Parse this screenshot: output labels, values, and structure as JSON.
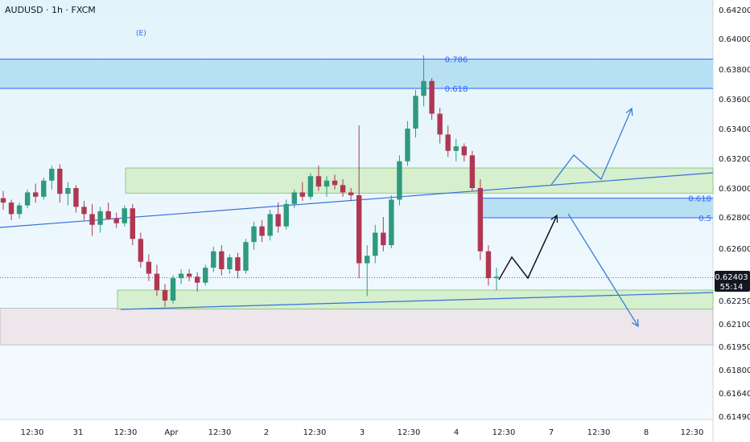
{
  "title": "AUDUSD · 1h · FXCM",
  "event_marker": "(E)",
  "colors": {
    "bull": "#2e9a7e",
    "bear": "#b03752",
    "background_top": "#e3f3fb",
    "background_bottom": "#f4fbff",
    "fib_line": "#2962ff",
    "fib_zone": "#b8e0f3",
    "green_zone": "#d5efcf",
    "gray_zone": "#ede6ea",
    "trendline": "#3b6fd8",
    "projection_blue": "#3b7dd8",
    "projection_black": "#131722",
    "price_tag": "#131722"
  },
  "current_price": {
    "price": "0.62403",
    "countdown": "55:14"
  },
  "chart_data": {
    "type": "candlestick",
    "symbol": "AUDUSD",
    "timeframe": "1h",
    "source": "FXCM",
    "y_ticks": [
      "0.64200",
      "0.64000",
      "0.63800",
      "0.63600",
      "0.63400",
      "0.63200",
      "0.63000",
      "0.62800",
      "0.62600",
      "0.62250",
      "0.62100",
      "0.61950",
      "0.61800",
      "0.61640",
      "0.61490"
    ],
    "x_ticks": [
      "12:30",
      "31",
      "12:30",
      "Apr",
      "12:30",
      "2",
      "12:30",
      "3",
      "12:30",
      "4",
      "12:30",
      "7",
      "12:30",
      "8",
      "12:30"
    ],
    "ohlc": [
      [
        0.6293,
        0.6298,
        0.6285,
        0.629
      ],
      [
        0.629,
        0.6292,
        0.6278,
        0.6282
      ],
      [
        0.6282,
        0.629,
        0.6279,
        0.6288
      ],
      [
        0.6288,
        0.6299,
        0.6286,
        0.6297
      ],
      [
        0.6297,
        0.6303,
        0.629,
        0.6294
      ],
      [
        0.6294,
        0.6307,
        0.6292,
        0.6305
      ],
      [
        0.6305,
        0.6315,
        0.6299,
        0.6313
      ],
      [
        0.6313,
        0.6316,
        0.629,
        0.6296
      ],
      [
        0.6296,
        0.6304,
        0.6288,
        0.63
      ],
      [
        0.63,
        0.6302,
        0.6283,
        0.6287
      ],
      [
        0.6287,
        0.6291,
        0.6278,
        0.6282
      ],
      [
        0.6282,
        0.6289,
        0.6268,
        0.6275
      ],
      [
        0.6275,
        0.6287,
        0.627,
        0.6284
      ],
      [
        0.6284,
        0.629,
        0.6278,
        0.6279
      ],
      [
        0.6279,
        0.6283,
        0.6273,
        0.6276
      ],
      [
        0.6276,
        0.6288,
        0.6274,
        0.6286
      ],
      [
        0.6286,
        0.6289,
        0.6262,
        0.6266
      ],
      [
        0.6266,
        0.627,
        0.6247,
        0.6251
      ],
      [
        0.6251,
        0.6256,
        0.6238,
        0.6243
      ],
      [
        0.6243,
        0.6249,
        0.6228,
        0.6232
      ],
      [
        0.6232,
        0.6236,
        0.6221,
        0.6225
      ],
      [
        0.6225,
        0.6242,
        0.6223,
        0.624
      ],
      [
        0.624,
        0.6246,
        0.6236,
        0.6243
      ],
      [
        0.6243,
        0.6246,
        0.6238,
        0.6241
      ],
      [
        0.6241,
        0.6244,
        0.6231,
        0.6237
      ],
      [
        0.6237,
        0.6249,
        0.6235,
        0.6247
      ],
      [
        0.6247,
        0.6261,
        0.6244,
        0.6258
      ],
      [
        0.6258,
        0.6262,
        0.6242,
        0.6246
      ],
      [
        0.6246,
        0.6256,
        0.6243,
        0.6254
      ],
      [
        0.6254,
        0.6257,
        0.624,
        0.6245
      ],
      [
        0.6245,
        0.6266,
        0.6243,
        0.6264
      ],
      [
        0.6264,
        0.6277,
        0.6259,
        0.6274
      ],
      [
        0.6274,
        0.6278,
        0.6264,
        0.6268
      ],
      [
        0.6268,
        0.6285,
        0.6265,
        0.6282
      ],
      [
        0.6282,
        0.629,
        0.627,
        0.6274
      ],
      [
        0.6274,
        0.6292,
        0.6272,
        0.6289
      ],
      [
        0.6289,
        0.6299,
        0.6286,
        0.6297
      ],
      [
        0.6297,
        0.6304,
        0.6291,
        0.6294
      ],
      [
        0.6294,
        0.631,
        0.6292,
        0.6308
      ],
      [
        0.6308,
        0.6315,
        0.6298,
        0.6301
      ],
      [
        0.6301,
        0.6308,
        0.6294,
        0.6305
      ],
      [
        0.6305,
        0.6309,
        0.6299,
        0.6302
      ],
      [
        0.6302,
        0.6306,
        0.6294,
        0.6297
      ],
      [
        0.6297,
        0.63,
        0.6291,
        0.6295
      ],
      [
        0.6295,
        0.6342,
        0.624,
        0.625
      ],
      [
        0.625,
        0.6262,
        0.6228,
        0.6255
      ],
      [
        0.6255,
        0.6275,
        0.625,
        0.627
      ],
      [
        0.627,
        0.628,
        0.6258,
        0.6262
      ],
      [
        0.6262,
        0.6295,
        0.626,
        0.6292
      ],
      [
        0.6292,
        0.6322,
        0.6288,
        0.6318
      ],
      [
        0.6318,
        0.6345,
        0.6315,
        0.634
      ],
      [
        0.634,
        0.6366,
        0.6334,
        0.6362
      ],
      [
        0.6362,
        0.6389,
        0.6355,
        0.6372
      ],
      [
        0.6372,
        0.6374,
        0.6346,
        0.635
      ],
      [
        0.635,
        0.6354,
        0.633,
        0.6336
      ],
      [
        0.6336,
        0.6342,
        0.6321,
        0.6325
      ],
      [
        0.6325,
        0.6333,
        0.6318,
        0.6328
      ],
      [
        0.6328,
        0.633,
        0.6318,
        0.6322
      ],
      [
        0.6322,
        0.6325,
        0.6298,
        0.63
      ],
      [
        0.63,
        0.6306,
        0.6252,
        0.6258
      ],
      [
        0.6258,
        0.6262,
        0.6235,
        0.624
      ],
      [
        0.624,
        0.6247,
        0.6232,
        0.6241
      ]
    ],
    "fib_levels_upper": [
      {
        "label": "0.786",
        "price": 0.63865
      },
      {
        "label": "0.618",
        "price": 0.6367
      }
    ],
    "fib_levels_lower": [
      {
        "label": "0.618",
        "price": 0.6293
      },
      {
        "label": "0.5",
        "price": 0.62795
      }
    ],
    "zones": {
      "upper_fib_zone": [
        0.6367,
        0.63865
      ],
      "upper_green_zone": [
        0.62965,
        0.63135
      ],
      "lower_green_zone": [
        0.62195,
        0.6232
      ],
      "gray_zone": [
        0.6196,
        0.622
      ],
      "lower_fib_zone": [
        0.62795,
        0.6293
      ]
    },
    "current_price": 0.62403
  }
}
